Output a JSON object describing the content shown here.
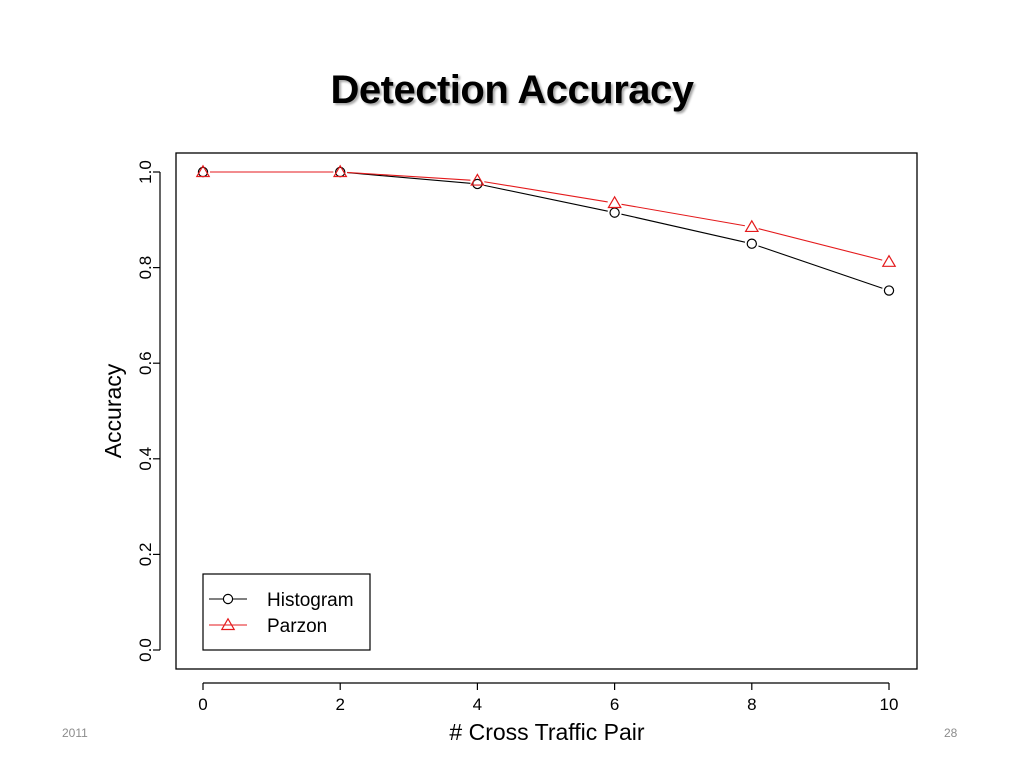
{
  "slide": {
    "title": "Detection Accuracy",
    "footer_left": "2011",
    "page_number": "28"
  },
  "colors": {
    "histogram": "#000000",
    "parzon": "#e41a1c"
  },
  "chart_data": {
    "type": "line",
    "title": "",
    "xlabel": "# Cross Traffic Pair",
    "ylabel": "Accuracy",
    "x": [
      0,
      2,
      4,
      6,
      8,
      10
    ],
    "xlim": [
      0,
      10
    ],
    "ylim": [
      0.0,
      1.0
    ],
    "xticks": [
      "0",
      "2",
      "4",
      "6",
      "8",
      "10"
    ],
    "yticks": [
      "0.0",
      "0.2",
      "0.4",
      "0.6",
      "0.8",
      "1.0"
    ],
    "grid": false,
    "legend_position": "bottom-left",
    "series": [
      {
        "name": "Histogram",
        "marker": "circle",
        "color": "#000000",
        "values": [
          1.0,
          1.0,
          0.975,
          0.915,
          0.85,
          0.752
        ]
      },
      {
        "name": "Parzon",
        "marker": "triangle",
        "color": "#e41a1c",
        "values": [
          1.0,
          1.0,
          0.982,
          0.935,
          0.885,
          0.812
        ]
      }
    ]
  }
}
